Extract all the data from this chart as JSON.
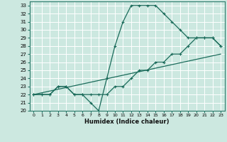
{
  "xlabel": "Humidex (Indice chaleur)",
  "bg_color": "#cce8e0",
  "grid_color": "#ffffff",
  "line_color": "#1a6b5a",
  "xlim": [
    -0.5,
    23.5
  ],
  "ylim": [
    20,
    33.5
  ],
  "xticks": [
    0,
    1,
    2,
    3,
    4,
    5,
    6,
    7,
    8,
    9,
    10,
    11,
    12,
    13,
    14,
    15,
    16,
    17,
    18,
    19,
    20,
    21,
    22,
    23
  ],
  "yticks": [
    20,
    21,
    22,
    23,
    24,
    25,
    26,
    27,
    28,
    29,
    30,
    31,
    32,
    33
  ],
  "line1_x": [
    0,
    1,
    2,
    3,
    4,
    5,
    6,
    7,
    8,
    9,
    10,
    11,
    12,
    13,
    14,
    15,
    16,
    17,
    18,
    19,
    20,
    21,
    22,
    23
  ],
  "line1_y": [
    22,
    22,
    22,
    23,
    23,
    22,
    22,
    21,
    20,
    24,
    28,
    31,
    33,
    33,
    33,
    33,
    32,
    31,
    30,
    29,
    29,
    29,
    29,
    28
  ],
  "line2_x": [
    0,
    1,
    2,
    3,
    4,
    5,
    6,
    7,
    8,
    9,
    10,
    11,
    12,
    13,
    14,
    15,
    16,
    17,
    18,
    19,
    20,
    21,
    22,
    23
  ],
  "line2_y": [
    22,
    22,
    22,
    23,
    23,
    22,
    22,
    22,
    22,
    22,
    23,
    23,
    24,
    25,
    25,
    26,
    26,
    27,
    27,
    28,
    29,
    29,
    29,
    28
  ],
  "line3_x": [
    0,
    23
  ],
  "line3_y": [
    22,
    27
  ]
}
